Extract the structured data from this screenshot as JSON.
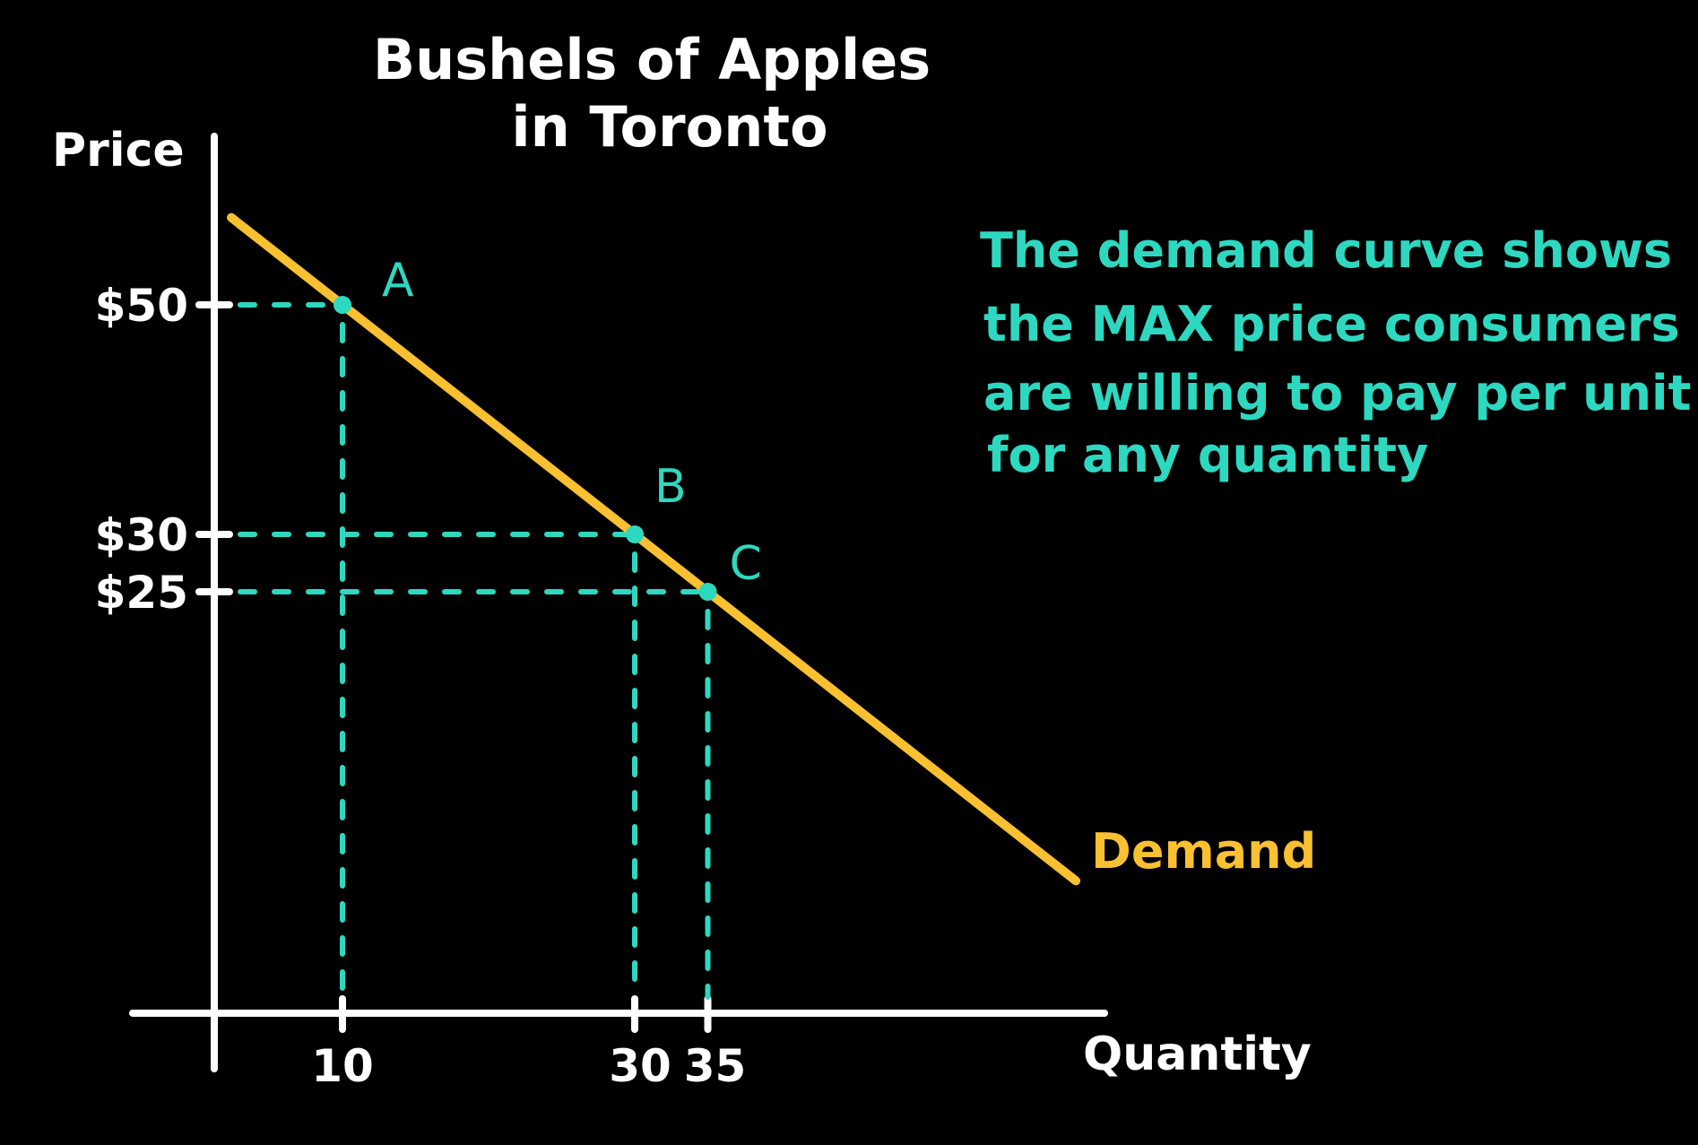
{
  "chart_data": {
    "type": "line",
    "title_line1": "Bushels of Apples",
    "title_line2": "in Toronto",
    "xlabel": "Quantity",
    "ylabel": "Price",
    "x_ticks": [
      10,
      30,
      35
    ],
    "x_tick_labels": [
      "10",
      "30",
      "35"
    ],
    "y_ticks": [
      50,
      30,
      25
    ],
    "y_tick_labels": [
      "$50",
      "$30",
      "$25"
    ],
    "series": [
      {
        "name": "Demand",
        "x": [
          10,
          30,
          35
        ],
        "y": [
          50,
          30,
          25
        ]
      }
    ],
    "points": [
      {
        "label": "A",
        "x": 10,
        "y": 50
      },
      {
        "label": "B",
        "x": 30,
        "y": 30
      },
      {
        "label": "C",
        "x": 35,
        "y": 25
      }
    ],
    "annotation": [
      "The demand curve shows",
      "the MAX price consumers",
      "are willing to pay per unit",
      "for any quantity"
    ],
    "grid": false,
    "colors": {
      "background": "#000000",
      "axes": "#ffffff",
      "demand": "#f9c031",
      "guides": "#2ed8c0"
    }
  }
}
